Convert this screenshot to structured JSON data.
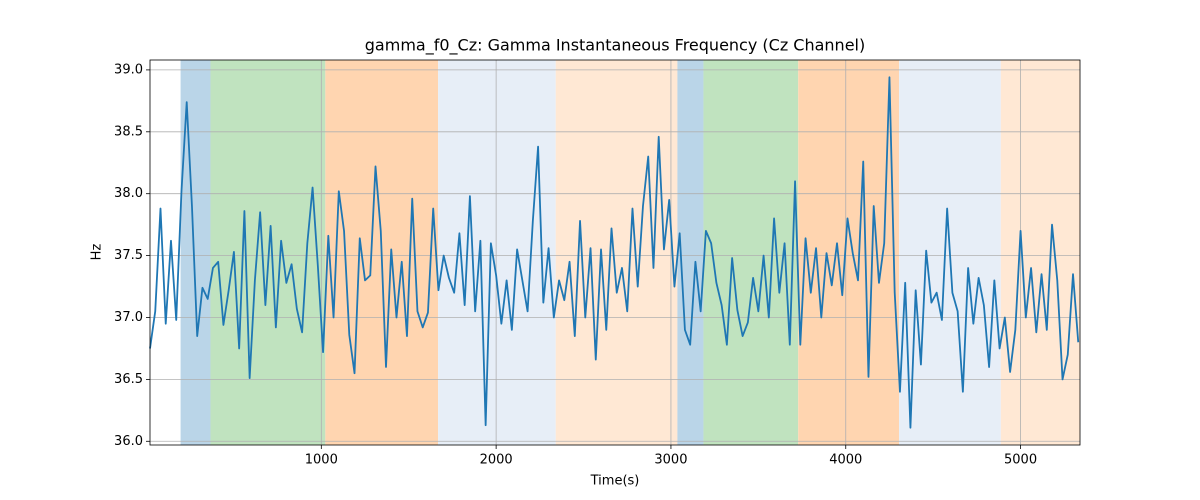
{
  "chart_data": {
    "type": "line",
    "title": "gamma_f0_Cz: Gamma Instantaneous Frequency (Cz Channel)",
    "x_label": "Time(s)",
    "y_label": "Hz",
    "color": "#1f77b4",
    "grid": true,
    "xlim": [
      20,
      5340
    ],
    "ylim": [
      35.97,
      39.08
    ],
    "xticks": [
      1000,
      2000,
      3000,
      4000,
      5000
    ],
    "yticks": [
      {
        "value": 36,
        "label": "36.0"
      },
      36.5,
      {
        "value": 37,
        "label": "37.0"
      },
      37.5,
      {
        "value": 38,
        "label": "38.0"
      },
      38.5,
      {
        "value": 39,
        "label": "39.0"
      }
    ],
    "spans": [
      {
        "start": 195,
        "end": 366,
        "color": "#bad5e8"
      },
      {
        "start": 366,
        "end": 1023,
        "color": "#c0e3bf"
      },
      {
        "start": 1023,
        "end": 1668,
        "color": "#ffd5b0"
      },
      {
        "start": 1668,
        "end": 2341,
        "color": "#e7eef7"
      },
      {
        "start": 2341,
        "end": 3037,
        "color": "#ffe8d4"
      },
      {
        "start": 3037,
        "end": 3186,
        "color": "#bad5e8"
      },
      {
        "start": 3186,
        "end": 3728,
        "color": "#c0e3bf"
      },
      {
        "start": 3728,
        "end": 4305,
        "color": "#ffd5b0"
      },
      {
        "start": 4305,
        "end": 4887,
        "color": "#e7eef7"
      },
      {
        "start": 4887,
        "end": 5340,
        "color": "#ffe8d4"
      }
    ],
    "x": [
      20,
      50,
      80,
      110,
      140,
      170,
      200,
      230,
      260,
      290,
      320,
      350,
      380,
      410,
      440,
      470,
      500,
      530,
      560,
      590,
      620,
      650,
      680,
      710,
      740,
      770,
      800,
      830,
      860,
      890,
      920,
      950,
      980,
      1010,
      1040,
      1070,
      1100,
      1130,
      1160,
      1190,
      1220,
      1250,
      1280,
      1310,
      1340,
      1370,
      1400,
      1430,
      1460,
      1490,
      1520,
      1550,
      1580,
      1610,
      1640,
      1670,
      1700,
      1730,
      1760,
      1790,
      1820,
      1850,
      1880,
      1910,
      1940,
      1970,
      2000,
      2030,
      2060,
      2090,
      2120,
      2150,
      2180,
      2210,
      2240,
      2270,
      2300,
      2330,
      2360,
      2390,
      2420,
      2450,
      2480,
      2510,
      2540,
      2570,
      2600,
      2630,
      2660,
      2690,
      2720,
      2750,
      2780,
      2810,
      2840,
      2870,
      2900,
      2930,
      2960,
      2990,
      3020,
      3050,
      3080,
      3110,
      3140,
      3170,
      3200,
      3230,
      3260,
      3290,
      3320,
      3350,
      3380,
      3410,
      3440,
      3470,
      3500,
      3530,
      3560,
      3590,
      3620,
      3650,
      3680,
      3710,
      3740,
      3770,
      3800,
      3830,
      3860,
      3890,
      3920,
      3950,
      3980,
      4010,
      4040,
      4070,
      4100,
      4130,
      4160,
      4190,
      4220,
      4250,
      4280,
      4310,
      4340,
      4370,
      4400,
      4430,
      4460,
      4490,
      4520,
      4550,
      4580,
      4610,
      4640,
      4670,
      4700,
      4730,
      4760,
      4790,
      4820,
      4850,
      4880,
      4910,
      4940,
      4970,
      5000,
      5030,
      5060,
      5090,
      5120,
      5150,
      5180,
      5210,
      5240,
      5270,
      5300,
      5330
    ],
    "values": [
      36.75,
      37.05,
      37.88,
      36.95,
      37.62,
      36.98,
      38.02,
      38.74,
      37.9,
      36.85,
      37.24,
      37.15,
      37.4,
      37.45,
      36.94,
      37.22,
      37.53,
      36.75,
      37.86,
      36.51,
      37.3,
      37.85,
      37.1,
      37.74,
      36.92,
      37.62,
      37.28,
      37.43,
      37.07,
      36.88,
      37.6,
      38.05,
      37.42,
      36.72,
      37.66,
      37.0,
      38.02,
      37.7,
      36.86,
      36.55,
      37.64,
      37.3,
      37.34,
      38.22,
      37.7,
      36.6,
      37.55,
      37.0,
      37.45,
      36.85,
      37.96,
      37.05,
      36.92,
      37.04,
      37.88,
      37.22,
      37.5,
      37.32,
      37.2,
      37.68,
      37.1,
      37.98,
      37.05,
      37.62,
      36.13,
      37.6,
      37.34,
      36.95,
      37.3,
      36.9,
      37.55,
      37.3,
      37.05,
      37.78,
      38.38,
      37.12,
      37.56,
      37.0,
      37.3,
      37.14,
      37.45,
      36.85,
      37.78,
      37.0,
      37.56,
      36.66,
      37.55,
      36.9,
      37.72,
      37.2,
      37.4,
      37.05,
      37.88,
      37.25,
      37.9,
      38.3,
      37.4,
      38.46,
      37.55,
      37.95,
      37.25,
      37.68,
      36.9,
      36.78,
      37.45,
      37.05,
      37.7,
      37.6,
      37.28,
      37.1,
      36.78,
      37.48,
      37.06,
      36.85,
      36.96,
      37.32,
      37.05,
      37.5,
      37.0,
      37.8,
      37.2,
      37.6,
      36.78,
      38.1,
      36.78,
      37.64,
      37.2,
      37.56,
      37.0,
      37.52,
      37.26,
      37.6,
      37.18,
      37.8,
      37.52,
      37.3,
      38.26,
      36.52,
      37.9,
      37.28,
      37.6,
      38.94,
      37.2,
      36.4,
      37.28,
      36.11,
      37.22,
      36.62,
      37.54,
      37.12,
      37.2,
      36.98,
      37.88,
      37.2,
      37.05,
      36.4,
      37.4,
      36.95,
      37.32,
      37.1,
      36.6,
      37.3,
      36.75,
      37.0,
      36.56,
      36.9,
      37.7,
      37.0,
      37.4,
      36.88,
      37.35,
      36.9,
      37.75,
      37.3,
      36.5,
      36.7,
      37.35,
      36.8
    ]
  }
}
